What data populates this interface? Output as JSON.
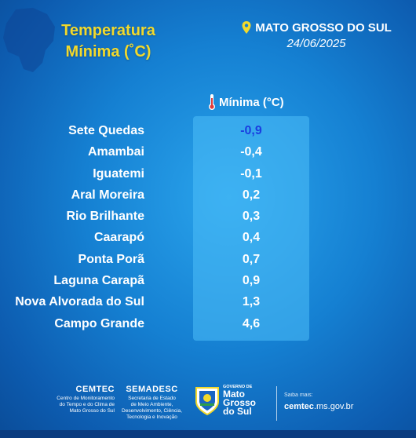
{
  "header": {
    "title_line1": "Temperatura",
    "title_line2": "Mínima (˚C)",
    "region": "MATO GROSSO DO SUL",
    "date": "24/06/2025"
  },
  "table": {
    "column_header": "Mínima (°C)",
    "rows": [
      {
        "city": "Sete Quedas",
        "value": "-0,9"
      },
      {
        "city": "Amambai",
        "value": "-0,4"
      },
      {
        "city": "Iguatemi",
        "value": "-0,1"
      },
      {
        "city": "Aral Moreira",
        "value": "0,2"
      },
      {
        "city": "Rio Brilhante",
        "value": "0,3"
      },
      {
        "city": "Caarapó",
        "value": "0,4"
      },
      {
        "city": "Ponta Porã",
        "value": "0,7"
      },
      {
        "city": "Laguna Carapã",
        "value": "0,9"
      },
      {
        "city": "Nova Alvorada do Sul",
        "value": "1,3"
      },
      {
        "city": "Campo Grande",
        "value": "4,6"
      }
    ]
  },
  "footer": {
    "cemtec_name": "CEMTEC",
    "cemtec_desc1": "Centro de Monitoramento",
    "cemtec_desc2": "do Tempo e do Clima de",
    "cemtec_desc3": "Mato Grosso do Sul",
    "semadesc_name": "SEMADESC",
    "semadesc_desc1": "Secretaria de Estado",
    "semadesc_desc2": "de Meio Ambiente,",
    "semadesc_desc3": "Desenvolvimento, Ciência,",
    "semadesc_desc4": "Tecnologia e Inovação",
    "gov_small1": "GOVERNO DE",
    "gov_big1": "Mato",
    "gov_big2": "Grosso",
    "gov_big3": "do Sul",
    "saiba": "Saiba mais:",
    "site_bold": "cemtec",
    "site_rest": ".ms.gov.br"
  },
  "colors": {
    "title": "#f2d92c",
    "lowest_value": "#1a3fe0",
    "value_column": "#4cbef8"
  },
  "icons": {
    "region": "map-pin-icon",
    "column": "thermometer-icon"
  }
}
